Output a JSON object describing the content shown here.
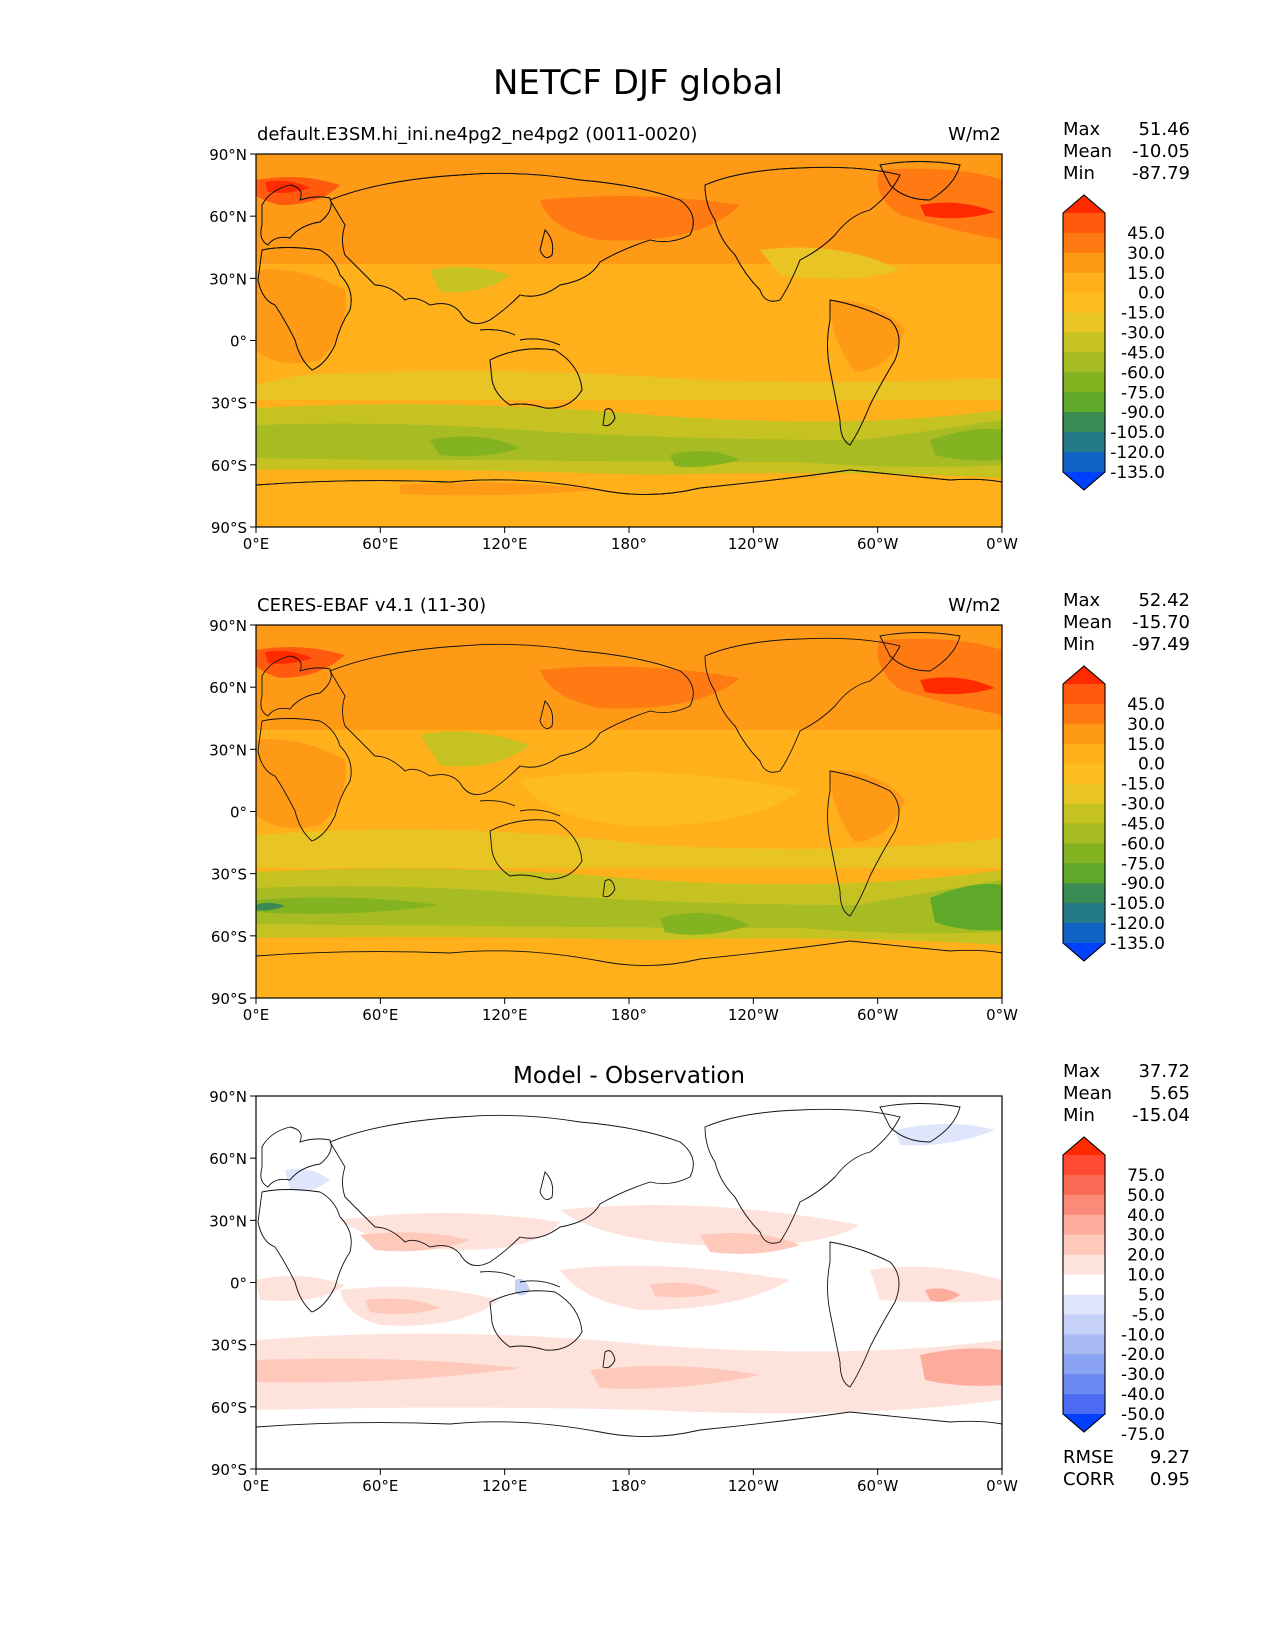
{
  "figure": {
    "title": "NETCF DJF global"
  },
  "common": {
    "x_ticks": [
      "0°E",
      "60°E",
      "120°E",
      "180°",
      "120°W",
      "60°W",
      "0°W"
    ],
    "y_ticks": [
      "90°N",
      "60°N",
      "30°N",
      "0°",
      "30°S",
      "60°S",
      "90°S"
    ],
    "stat_labels": {
      "max": "Max",
      "mean": "Mean",
      "min": "Min"
    }
  },
  "chart_data": [
    {
      "type": "heatmap",
      "title": "default.E3SM.hi_ini.ne4pg2_ne4pg2 (0011-0020)",
      "units": "W/m2",
      "x_range": [
        0,
        360
      ],
      "y_range": [
        -90,
        90
      ],
      "stats": {
        "max": "51.46",
        "mean": "-10.05",
        "min": "-87.79"
      },
      "colorbar": {
        "labels": [
          "45.0",
          "30.0",
          "15.0",
          "0.0",
          "-15.0",
          "-30.0",
          "-45.0",
          "-60.0",
          "-75.0",
          "-90.0",
          "-105.0",
          "-120.0",
          "-135.0"
        ],
        "colors": [
          "#ff2a00",
          "#ff5a0e",
          "#ff7a12",
          "#ff9a17",
          "#ffb01a",
          "#fdbd1f",
          "#e8c424",
          "#c5c222",
          "#a6bc22",
          "#84b322",
          "#5fa92a",
          "#3a8a54",
          "#257a8a",
          "#1163c7",
          "#0040ff"
        ]
      }
    },
    {
      "type": "heatmap",
      "title": "CERES-EBAF v4.1 (11-30)",
      "units": "W/m2",
      "x_range": [
        0,
        360
      ],
      "y_range": [
        -90,
        90
      ],
      "stats": {
        "max": "52.42",
        "mean": "-15.70",
        "min": "-97.49"
      },
      "colorbar": {
        "labels": [
          "45.0",
          "30.0",
          "15.0",
          "0.0",
          "-15.0",
          "-30.0",
          "-45.0",
          "-60.0",
          "-75.0",
          "-90.0",
          "-105.0",
          "-120.0",
          "-135.0"
        ],
        "colors": [
          "#ff2a00",
          "#ff5a0e",
          "#ff7a12",
          "#ff9a17",
          "#ffb01a",
          "#fdbd1f",
          "#e8c424",
          "#c5c222",
          "#a6bc22",
          "#84b322",
          "#5fa92a",
          "#3a8a54",
          "#257a8a",
          "#1163c7",
          "#0040ff"
        ]
      }
    },
    {
      "type": "heatmap",
      "title": "Model - Observation",
      "units": "",
      "x_range": [
        0,
        360
      ],
      "y_range": [
        -90,
        90
      ],
      "stats": {
        "max": "37.72",
        "mean": "5.65",
        "min": "-15.04"
      },
      "extra_stats": {
        "rmse_label": "RMSE",
        "rmse": "9.27",
        "corr_label": "CORR",
        "corr": "0.95"
      },
      "colorbar": {
        "labels": [
          "75.0",
          "50.0",
          "40.0",
          "30.0",
          "20.0",
          "10.0",
          "5.0",
          "-5.0",
          "-10.0",
          "-20.0",
          "-30.0",
          "-40.0",
          "-50.0",
          "-75.0"
        ],
        "colors": [
          "#ff2a00",
          "#ff4b33",
          "#fb6a55",
          "#fc8a78",
          "#fdab9a",
          "#fec8bb",
          "#fee3dc",
          "#ffffff",
          "#dfe6fb",
          "#c5d1f8",
          "#a9bbf5",
          "#8aa2f2",
          "#6b88f0",
          "#4b6bf2",
          "#0040ff"
        ]
      }
    }
  ]
}
